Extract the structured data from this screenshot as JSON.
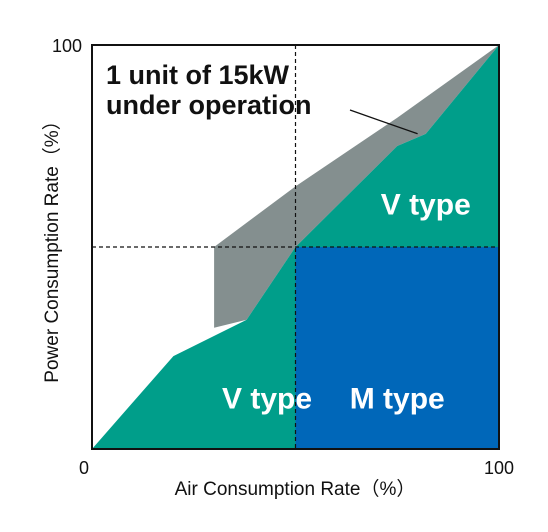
{
  "chart_data": {
    "type": "area",
    "xlabel": "Air Consumption Rate（%）",
    "ylabel": "Power Consumption Rate（%）",
    "xlim": [
      0,
      100
    ],
    "ylim": [
      0,
      100
    ],
    "x_ticks": [
      "0",
      "100"
    ],
    "y_ticks": [
      "100"
    ],
    "grid": false,
    "reference_lines": {
      "x": 50,
      "y": 50
    },
    "colors": {
      "v_type": "#009e8a",
      "m_type": "#0067b9",
      "one_unit_band": "#848f8f",
      "frame": "#111111"
    },
    "series": [
      {
        "name": "1 unit of 15kW under operation",
        "points": [
          [
            30,
            30
          ],
          [
            30,
            50
          ],
          [
            50,
            65
          ],
          [
            75,
            82
          ],
          [
            100,
            100
          ]
        ]
      },
      {
        "name": "V type",
        "points": [
          [
            0,
            0
          ],
          [
            20,
            23
          ],
          [
            38,
            32
          ],
          [
            50,
            50
          ],
          [
            75,
            75
          ],
          [
            82,
            78
          ],
          [
            100,
            100
          ]
        ]
      }
    ],
    "regions": [
      {
        "label": "V type",
        "x": 43,
        "y": 10
      },
      {
        "label": "V type",
        "x": 82,
        "y": 58
      },
      {
        "label": "M type",
        "x": 75,
        "y": 10
      }
    ],
    "annotation": {
      "line1": "1 unit of 15kW",
      "line2": "under operation",
      "points_to": [
        80,
        80
      ]
    }
  }
}
